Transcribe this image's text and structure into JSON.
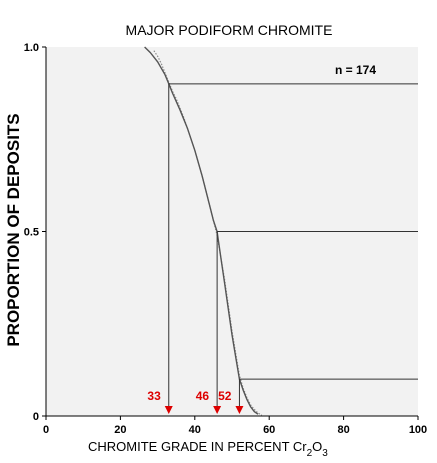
{
  "chart_data": {
    "type": "line",
    "title": "MAJOR PODIFORM CHROMITE",
    "xlabel": {
      "text": "CHROMITE GRADE IN PERCENT Cr",
      "sub1": "2",
      "mid": "O",
      "sub2": "3"
    },
    "ylabel": "PROPORTION OF DEPOSITS",
    "annotation": "n = 174",
    "xlim": [
      0,
      100
    ],
    "ylim": [
      0,
      1
    ],
    "x_ticks": [
      0,
      20,
      40,
      60,
      80,
      100
    ],
    "y_ticks": [
      {
        "value": 0,
        "label": "0"
      },
      {
        "value": 0.5,
        "label": "0.5"
      },
      {
        "value": 1,
        "label": "1.0"
      }
    ],
    "grid": false,
    "percentile_marks": [
      {
        "proportion": 0.9,
        "grade": 33,
        "label": "33"
      },
      {
        "proportion": 0.5,
        "grade": 46,
        "label": "46"
      },
      {
        "proportion": 0.1,
        "grade": 52,
        "label": "52"
      }
    ],
    "fitted_curve": {
      "x": [
        26.5,
        28,
        30,
        32,
        33,
        34,
        36,
        38,
        40,
        42,
        44,
        45,
        46,
        47,
        48,
        49,
        50,
        51,
        52,
        53,
        54,
        55,
        56,
        57
      ],
      "y": [
        1.0,
        0.985,
        0.96,
        0.925,
        0.9,
        0.875,
        0.83,
        0.78,
        0.72,
        0.65,
        0.57,
        0.53,
        0.5,
        0.43,
        0.36,
        0.29,
        0.22,
        0.16,
        0.1,
        0.07,
        0.045,
        0.025,
        0.012,
        0.005
      ]
    },
    "observed": {
      "x": [
        29,
        30,
        31,
        32,
        33,
        34,
        35,
        36,
        37,
        38,
        39,
        40,
        41,
        42,
        43,
        44,
        45,
        46,
        47,
        48,
        49,
        50,
        51,
        52,
        53,
        54,
        55,
        56,
        57,
        58
      ],
      "y": [
        0.99,
        0.975,
        0.955,
        0.93,
        0.905,
        0.88,
        0.86,
        0.835,
        0.81,
        0.78,
        0.75,
        0.72,
        0.685,
        0.65,
        0.61,
        0.57,
        0.53,
        0.49,
        0.43,
        0.37,
        0.3,
        0.23,
        0.17,
        0.11,
        0.075,
        0.05,
        0.03,
        0.018,
        0.008,
        0.002
      ]
    },
    "colors": {
      "curve": "#555555",
      "observed": "#8a8a8a",
      "lines": "#333333",
      "marks": "#dd0000",
      "plot_bg": "#f2f2f2"
    }
  }
}
